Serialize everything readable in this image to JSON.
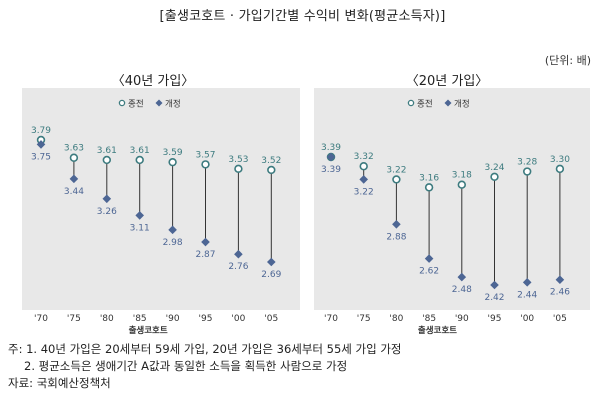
{
  "figure_title": "[출생코호트 · 가입기간별 수익비 변화(평균소득자)]",
  "unit": "(단위: 배)",
  "legend": {
    "before": "종전",
    "after": "개정"
  },
  "colors": {
    "before": "#3d7b7f",
    "after": "#4d6694",
    "line": "#333333",
    "panel_bg": "#e8e8e8"
  },
  "notes": [
    "주: 1. 40년 가입은 20세부터 59세 가입, 20년 가입은 36세부터 55세 가입 가정",
    "2. 평균소득은 생애기간 A값과 동일한 소득을 획득한 사람으로 가정",
    "자료: 국회예산정책처"
  ],
  "chart_data": [
    {
      "type": "dumbbell",
      "title": "〈40년 가입〉",
      "xlabel": "출생코호트",
      "categories": [
        "'70",
        "'75",
        "'80",
        "'85",
        "'90",
        "'95",
        "'00",
        "'05"
      ],
      "series": [
        {
          "name": "종전",
          "values": [
            3.79,
            3.63,
            3.61,
            3.61,
            3.59,
            3.57,
            3.53,
            3.52
          ]
        },
        {
          "name": "개정",
          "values": [
            3.75,
            3.44,
            3.26,
            3.11,
            2.98,
            2.87,
            2.76,
            2.69
          ]
        }
      ],
      "ylim": [
        2.4,
        3.9
      ],
      "grid": false,
      "legend_position": "top"
    },
    {
      "type": "dumbbell",
      "title": "〈20년 가입〉",
      "xlabel": "출생코호트",
      "categories": [
        "'70",
        "'75",
        "'80",
        "'85",
        "'90",
        "'95",
        "'00",
        "'05"
      ],
      "series": [
        {
          "name": "종전",
          "values": [
            3.39,
            3.32,
            3.22,
            3.16,
            3.18,
            3.24,
            3.28,
            3.3
          ]
        },
        {
          "name": "개정",
          "values": [
            3.39,
            3.22,
            2.88,
            2.62,
            2.48,
            2.42,
            2.44,
            2.46
          ]
        }
      ],
      "ylim": [
        2.2,
        3.55
      ],
      "grid": false,
      "legend_position": "top"
    }
  ]
}
